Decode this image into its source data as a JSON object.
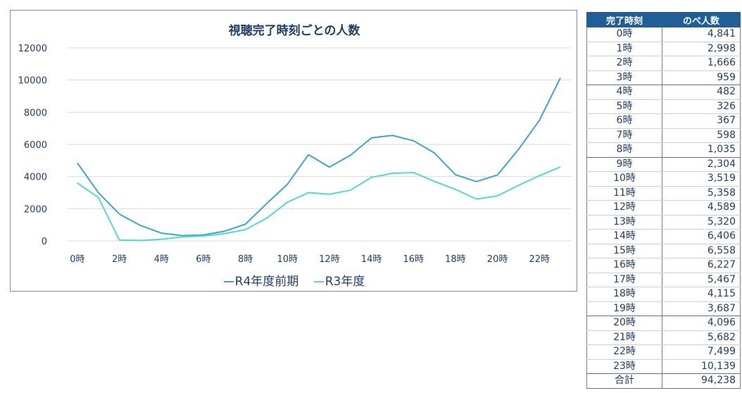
{
  "chart_data": {
    "type": "line",
    "title": "視聴完了時刻ごとの人数",
    "categories": [
      "0時",
      "1時",
      "2時",
      "3時",
      "4時",
      "5時",
      "6時",
      "7時",
      "8時",
      "9時",
      "10時",
      "11時",
      "12時",
      "13時",
      "14時",
      "15時",
      "16時",
      "17時",
      "18時",
      "19時",
      "20時",
      "21時",
      "22時",
      "23時"
    ],
    "tick_labels": [
      "0時",
      "2時",
      "4時",
      "6時",
      "8時",
      "10時",
      "12時",
      "14時",
      "16時",
      "18時",
      "20時",
      "22時"
    ],
    "ylim": [
      0,
      12000
    ],
    "yticks": [
      0,
      2000,
      4000,
      6000,
      8000,
      10000,
      12000
    ],
    "grid": true,
    "legend": "bottom",
    "series": [
      {
        "name": "R4年度前期",
        "color": "#3aa6d8",
        "values": [
          4841,
          2998,
          1666,
          959,
          482,
          326,
          367,
          598,
          1035,
          2304,
          3519,
          5358,
          4589,
          5320,
          6406,
          6558,
          6227,
          5467,
          4115,
          3687,
          4096,
          5682,
          7499,
          10139
        ]
      },
      {
        "name": "R3年度",
        "color": "#4ddccf",
        "values": [
          3600,
          2700,
          50,
          30,
          100,
          250,
          300,
          450,
          700,
          1400,
          2400,
          3000,
          2900,
          3150,
          3950,
          4200,
          4250,
          3700,
          3200,
          2600,
          2800,
          3450,
          4050,
          4600
        ]
      }
    ]
  },
  "table": {
    "headers": [
      "完了時刻",
      "のべ人数"
    ],
    "rows": [
      [
        "0時",
        "4,841"
      ],
      [
        "1時",
        "2,998"
      ],
      [
        "2時",
        "1,666"
      ],
      [
        "3時",
        "959"
      ],
      [
        "4時",
        "482"
      ],
      [
        "5時",
        "326"
      ],
      [
        "6時",
        "367"
      ],
      [
        "7時",
        "598"
      ],
      [
        "8時",
        "1,035"
      ],
      [
        "9時",
        "2,304"
      ],
      [
        "10時",
        "3,519"
      ],
      [
        "11時",
        "5,358"
      ],
      [
        "12時",
        "4,589"
      ],
      [
        "13時",
        "5,320"
      ],
      [
        "14時",
        "6,406"
      ],
      [
        "15時",
        "6,558"
      ],
      [
        "16時",
        "6,227"
      ],
      [
        "17時",
        "5,467"
      ],
      [
        "18時",
        "4,115"
      ],
      [
        "19時",
        "3,687"
      ],
      [
        "20時",
        "4,096"
      ],
      [
        "21時",
        "5,682"
      ],
      [
        "22時",
        "7,499"
      ],
      [
        "23時",
        "10,139"
      ],
      [
        "合計",
        "94,238"
      ]
    ]
  }
}
